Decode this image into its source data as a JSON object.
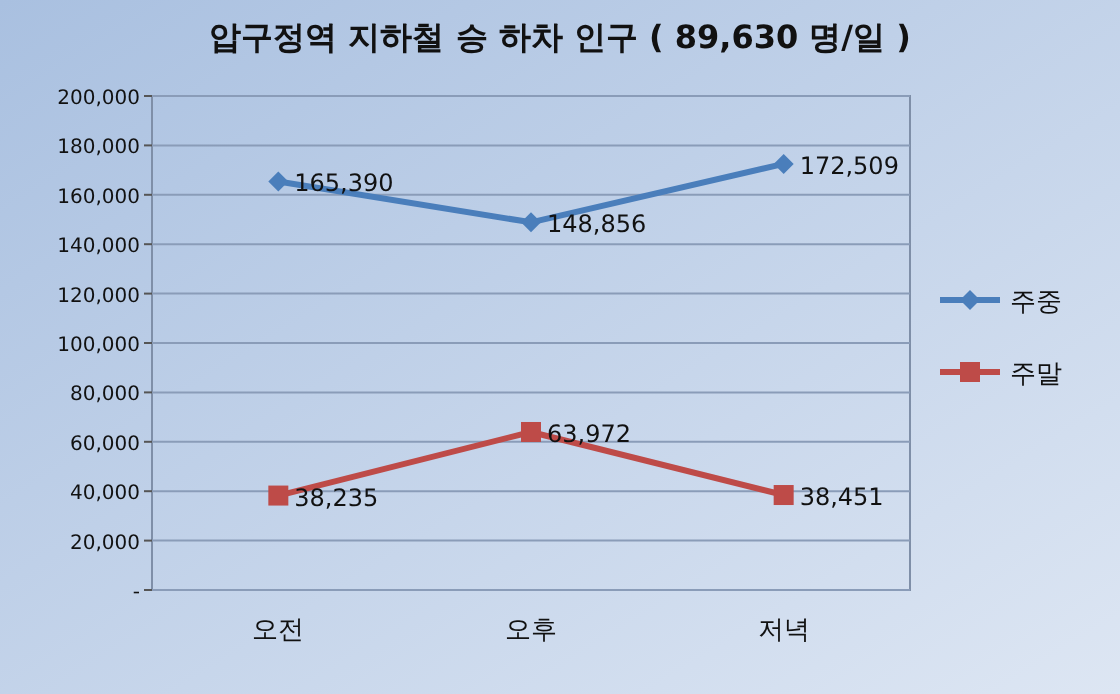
{
  "chart_data": {
    "type": "line",
    "title": "압구정역 지하철 승 하차 인구 ( 89,630 명/일 )",
    "categories": [
      "오전",
      "오후",
      "저녁"
    ],
    "series": [
      {
        "name": "주중",
        "color": "#4a7ebb",
        "marker": "diamond",
        "values": [
          165390,
          148856,
          172509
        ],
        "value_labels": [
          "165,390",
          "148,856",
          "172,509"
        ]
      },
      {
        "name": "주말",
        "color": "#be4b48",
        "marker": "square",
        "values": [
          38235,
          63972,
          38451
        ],
        "value_labels": [
          "38,235",
          "63,972",
          "38,451"
        ]
      }
    ],
    "ylim": [
      0,
      200000
    ],
    "yticks": [
      {
        "value": 0,
        "label": "-"
      },
      {
        "value": 20000,
        "label": "20,000"
      },
      {
        "value": 40000,
        "label": "40,000"
      },
      {
        "value": 60000,
        "label": "60,000"
      },
      {
        "value": 80000,
        "label": "80,000"
      },
      {
        "value": 100000,
        "label": "100,000"
      },
      {
        "value": 120000,
        "label": "120,000"
      },
      {
        "value": 140000,
        "label": "140,000"
      },
      {
        "value": 160000,
        "label": "160,000"
      },
      {
        "value": 180000,
        "label": "180,000"
      },
      {
        "value": 200000,
        "label": "200,000"
      }
    ],
    "grid": "y",
    "legend": "right"
  }
}
